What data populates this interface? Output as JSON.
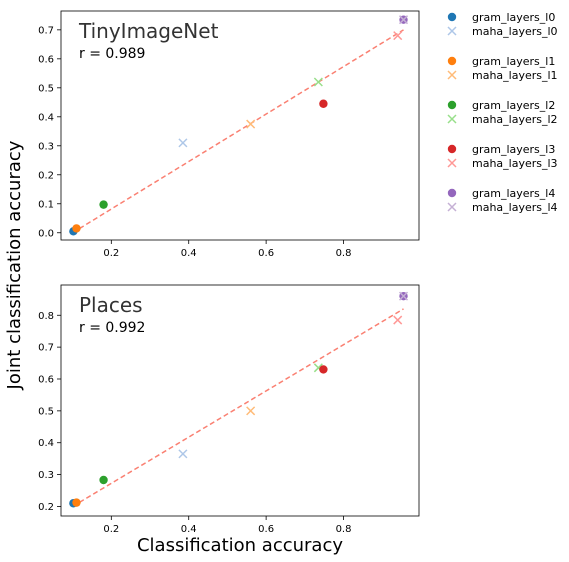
{
  "figure": {
    "ylabel": "Joint classification accuracy",
    "xlabel": "Classification accuracy"
  },
  "legend": {
    "placement": "outside-right",
    "entries": [
      {
        "label": "gram_layers_l0",
        "marker": "circle",
        "color": "#1f77b4"
      },
      {
        "label": "maha_layers_l0",
        "marker": "x",
        "color": "#aec7e8"
      },
      {
        "label": "gram_layers_l1",
        "marker": "circle",
        "color": "#ff7f0e"
      },
      {
        "label": "maha_layers_l1",
        "marker": "x",
        "color": "#ffbb78"
      },
      {
        "label": "gram_layers_l2",
        "marker": "circle",
        "color": "#2ca02c"
      },
      {
        "label": "maha_layers_l2",
        "marker": "x",
        "color": "#98df8a"
      },
      {
        "label": "gram_layers_l3",
        "marker": "circle",
        "color": "#d62728"
      },
      {
        "label": "maha_layers_l3",
        "marker": "x",
        "color": "#ff9896"
      },
      {
        "label": "gram_layers_l4",
        "marker": "circle",
        "color": "#9467bd"
      },
      {
        "label": "maha_layers_l4",
        "marker": "x",
        "color": "#c5b0d5"
      }
    ]
  },
  "fit_line_color": "#fa8072",
  "chart_data": [
    {
      "type": "scatter",
      "title": "TinyImageNet",
      "annotation": "r = 0.989",
      "xlim": [
        0.07,
        0.995
      ],
      "ylim": [
        -0.025,
        0.765
      ],
      "xticks": [
        0.2,
        0.4,
        0.6,
        0.8
      ],
      "xtick_labels": [
        "0.2",
        "0.4",
        "0.6",
        "0.8"
      ],
      "yticks": [
        0.0,
        0.1,
        0.2,
        0.3,
        0.4,
        0.5,
        0.6,
        0.7
      ],
      "ytick_labels": [
        "0.0",
        "0.1",
        "0.2",
        "0.3",
        "0.4",
        "0.5",
        "0.6",
        "0.7"
      ],
      "fit_line": {
        "x": [
          0.1,
          0.955
        ],
        "y": [
          0.0,
          0.7
        ]
      },
      "points": [
        {
          "series": "gram_layers_l0",
          "x": 0.102,
          "y": 0.005
        },
        {
          "series": "maha_layers_l0",
          "x": 0.385,
          "y": 0.31
        },
        {
          "series": "gram_layers_l1",
          "x": 0.11,
          "y": 0.015
        },
        {
          "series": "maha_layers_l1",
          "x": 0.56,
          "y": 0.375
        },
        {
          "series": "gram_layers_l2",
          "x": 0.18,
          "y": 0.097
        },
        {
          "series": "maha_layers_l2",
          "x": 0.735,
          "y": 0.52
        },
        {
          "series": "gram_layers_l3",
          "x": 0.748,
          "y": 0.445
        },
        {
          "series": "maha_layers_l3",
          "x": 0.94,
          "y": 0.68
        },
        {
          "series": "gram_layers_l4",
          "x": 0.955,
          "y": 0.735
        },
        {
          "series": "maha_layers_l4",
          "x": 0.955,
          "y": 0.735
        }
      ]
    },
    {
      "type": "scatter",
      "title": "Places",
      "annotation": "r = 0.992",
      "xlim": [
        0.07,
        0.995
      ],
      "ylim": [
        0.17,
        0.895
      ],
      "xticks": [
        0.2,
        0.4,
        0.6,
        0.8
      ],
      "xtick_labels": [
        "0.2",
        "0.4",
        "0.6",
        "0.8"
      ],
      "yticks": [
        0.2,
        0.3,
        0.4,
        0.5,
        0.6,
        0.7,
        0.8
      ],
      "ytick_labels": [
        "0.2",
        "0.3",
        "0.4",
        "0.5",
        "0.6",
        "0.7",
        "0.8"
      ],
      "fit_line": {
        "x": [
          0.1,
          0.955
        ],
        "y": [
          0.2,
          0.82
        ]
      },
      "points": [
        {
          "series": "gram_layers_l0",
          "x": 0.102,
          "y": 0.21
        },
        {
          "series": "maha_layers_l0",
          "x": 0.385,
          "y": 0.365
        },
        {
          "series": "gram_layers_l1",
          "x": 0.11,
          "y": 0.212
        },
        {
          "series": "maha_layers_l1",
          "x": 0.56,
          "y": 0.5
        },
        {
          "series": "gram_layers_l2",
          "x": 0.18,
          "y": 0.283
        },
        {
          "series": "maha_layers_l2",
          "x": 0.735,
          "y": 0.635
        },
        {
          "series": "gram_layers_l3",
          "x": 0.748,
          "y": 0.63
        },
        {
          "series": "maha_layers_l3",
          "x": 0.94,
          "y": 0.785
        },
        {
          "series": "gram_layers_l4",
          "x": 0.955,
          "y": 0.86
        },
        {
          "series": "maha_layers_l4",
          "x": 0.955,
          "y": 0.86
        }
      ]
    }
  ]
}
